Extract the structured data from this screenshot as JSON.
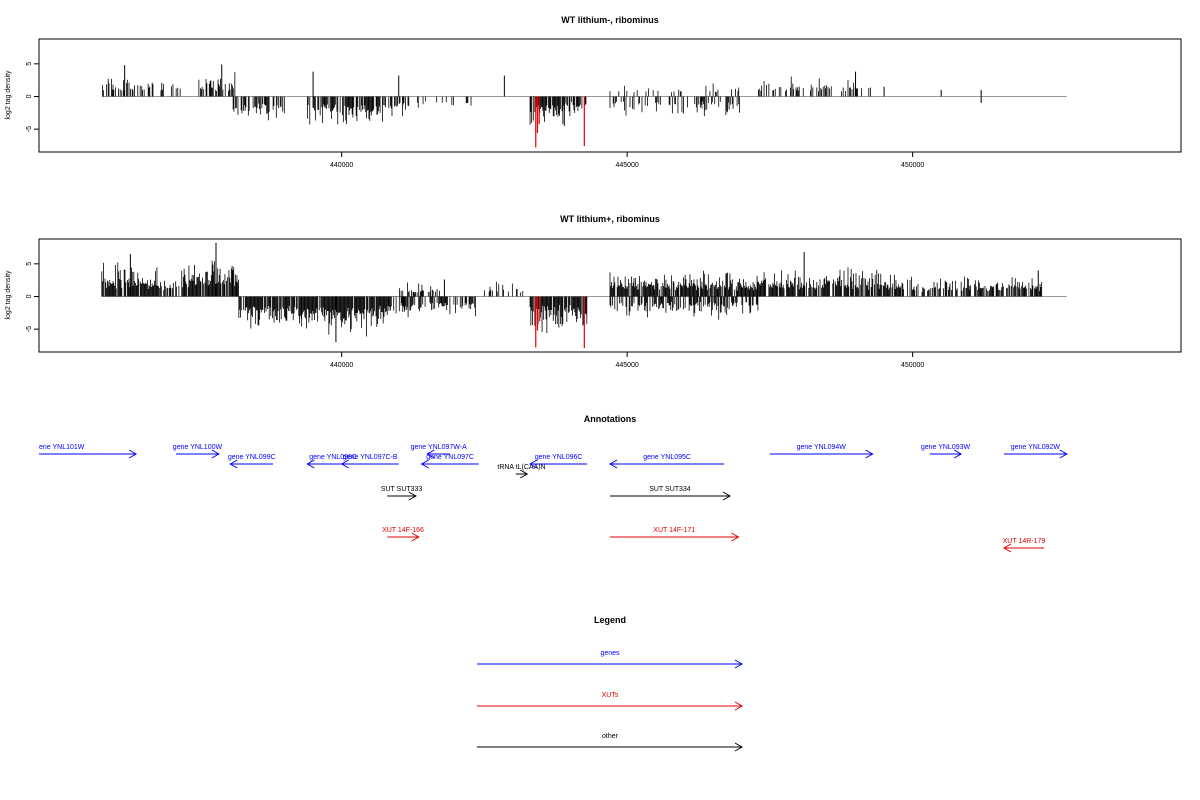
{
  "chart_data": [
    {
      "type": "bar",
      "title": "WT lithium-, ribominus",
      "ylabel": "log2 tag density",
      "xlim": [
        434700,
        454700
      ],
      "ylim": [
        -8.5,
        8.8
      ],
      "x_ticks": [
        440000,
        445000,
        450000
      ],
      "y_ticks": [
        5,
        0,
        -5
      ],
      "baseline": 0,
      "bar_color": "#000000",
      "highlight_color": "#e00000",
      "regions": [
        {
          "from": 435800,
          "to": 437200,
          "amp": 2.8,
          "sign": 1,
          "density": 0.45
        },
        {
          "from": 437500,
          "to": 438150,
          "amp": 3.2,
          "sign": 1,
          "density": 0.45
        },
        {
          "from": 438100,
          "to": 439000,
          "amp": 3.5,
          "sign": -1,
          "density": 0.6
        },
        {
          "from": 439400,
          "to": 440700,
          "amp": 4.2,
          "sign": -1,
          "density": 0.75
        },
        {
          "from": 440700,
          "to": 441200,
          "amp": 3.2,
          "sign": -1,
          "density": 0.5
        },
        {
          "from": 441300,
          "to": 442300,
          "amp": 2.5,
          "sign": -1,
          "density": 0.2
        },
        {
          "from": 443300,
          "to": 443900,
          "amp": 4.5,
          "sign": -1,
          "density": 0.8
        },
        {
          "from": 443900,
          "to": 444300,
          "amp": 3.0,
          "sign": -1,
          "density": 0.5
        },
        {
          "from": 444700,
          "to": 447000,
          "amp": 2.8,
          "sign": -1,
          "density": 0.35
        },
        {
          "from": 444700,
          "to": 447000,
          "amp": 1.8,
          "sign": 1,
          "density": 0.15
        },
        {
          "from": 447300,
          "to": 449300,
          "amp": 2.7,
          "sign": 1,
          "density": 0.4
        }
      ],
      "spikes": [
        {
          "x": 436200,
          "y": 4.8
        },
        {
          "x": 437900,
          "y": 4.9
        },
        {
          "x": 439500,
          "y": 3.8
        },
        {
          "x": 441000,
          "y": 3.2
        },
        {
          "x": 442850,
          "y": 3.2
        },
        {
          "x": 449000,
          "y": 3.8
        },
        {
          "x": 449500,
          "y": 1.5
        },
        {
          "x": 450500,
          "y": 1.0
        },
        {
          "x": 451200,
          "y": 1.0
        },
        {
          "x": 451200,
          "y": -1.0
        },
        {
          "x": 443900,
          "y": -4.5
        }
      ],
      "highlights": [
        {
          "x": 443400,
          "y": -7.8
        },
        {
          "x": 443430,
          "y": -5.6
        },
        {
          "x": 443460,
          "y": -4.2
        },
        {
          "x": 444250,
          "y": -7.6
        }
      ]
    },
    {
      "type": "bar",
      "title": "WT lithium+, ribominus",
      "ylabel": "log2 tag density",
      "xlim": [
        434700,
        454700
      ],
      "ylim": [
        -8.5,
        8.8
      ],
      "x_ticks": [
        440000,
        445000,
        450000
      ],
      "y_ticks": [
        5,
        0,
        -5
      ],
      "baseline": 0,
      "bar_color": "#000000",
      "highlight_color": "#e00000",
      "regions": [
        {
          "from": 435800,
          "to": 436800,
          "amp": 4.5,
          "sign": 1,
          "density": 0.9
        },
        {
          "from": 436800,
          "to": 437200,
          "amp": 3.0,
          "sign": 1,
          "density": 0.6
        },
        {
          "from": 437200,
          "to": 438200,
          "amp": 5.0,
          "sign": 1,
          "density": 0.9
        },
        {
          "from": 438200,
          "to": 439300,
          "amp": 4.5,
          "sign": -1,
          "density": 0.8
        },
        {
          "from": 439300,
          "to": 440800,
          "amp": 5.5,
          "sign": -1,
          "density": 0.95
        },
        {
          "from": 440800,
          "to": 441200,
          "amp": 3.5,
          "sign": -1,
          "density": 0.6
        },
        {
          "from": 441000,
          "to": 441800,
          "amp": 2.0,
          "sign": 1,
          "density": 0.45
        },
        {
          "from": 441000,
          "to": 442400,
          "amp": 3.0,
          "sign": -1,
          "density": 0.6
        },
        {
          "from": 442500,
          "to": 443200,
          "amp": 2.0,
          "sign": 1,
          "density": 0.35
        },
        {
          "from": 443300,
          "to": 444300,
          "amp": 5.0,
          "sign": -1,
          "density": 0.85
        },
        {
          "from": 444700,
          "to": 447300,
          "amp": 3.5,
          "sign": 1,
          "density": 0.9
        },
        {
          "from": 444700,
          "to": 447300,
          "amp": 3.0,
          "sign": -1,
          "density": 0.6
        },
        {
          "from": 447300,
          "to": 449800,
          "amp": 3.8,
          "sign": 1,
          "density": 0.85
        },
        {
          "from": 449800,
          "to": 451000,
          "amp": 2.6,
          "sign": 1,
          "density": 0.6
        },
        {
          "from": 451000,
          "to": 452300,
          "amp": 2.8,
          "sign": 1,
          "density": 0.7
        }
      ],
      "spikes": [
        {
          "x": 436300,
          "y": 6.5
        },
        {
          "x": 437800,
          "y": 8.2
        },
        {
          "x": 439900,
          "y": -7.0
        },
        {
          "x": 448100,
          "y": 6.8
        },
        {
          "x": 452200,
          "y": 4.0
        },
        {
          "x": 441800,
          "y": 2.6
        }
      ],
      "highlights": [
        {
          "x": 443400,
          "y": -7.8
        },
        {
          "x": 443430,
          "y": -5.2
        },
        {
          "x": 443470,
          "y": -3.8
        },
        {
          "x": 444250,
          "y": -7.9
        }
      ]
    }
  ],
  "annotations": {
    "title": "Annotations",
    "tracks": [
      {
        "label": "ene YNL101W",
        "color": "#0000ff",
        "dir": 1,
        "from": 434700,
        "to": 436400,
        "row": 0
      },
      {
        "label": "gene YNL100W",
        "color": "#0000ff",
        "dir": 1,
        "from": 437100,
        "to": 437850,
        "row": 0
      },
      {
        "label": "gene YNL099C",
        "color": "#0000ff",
        "dir": -1,
        "from": 438050,
        "to": 438800,
        "row": 1
      },
      {
        "label": "gene YNL098C",
        "color": "#0000ff",
        "dir": -1,
        "from": 439400,
        "to": 440300,
        "row": 1
      },
      {
        "label": "gene YNL097C-B",
        "color": "#0000ff",
        "dir": -1,
        "from": 440000,
        "to": 441000,
        "row": 1
      },
      {
        "label": "gene YNL097W-A",
        "color": "#0000ff",
        "dir": -1,
        "from": 441500,
        "to": 441900,
        "row": 0
      },
      {
        "label": "gene YNL097C",
        "color": "#0000ff",
        "dir": -1,
        "from": 441400,
        "to": 442400,
        "row": 1
      },
      {
        "label": "tRNA tL(CAA)N",
        "color": "#000000",
        "dir": 1,
        "from": 443050,
        "to": 443250,
        "row": 2
      },
      {
        "label": "gene YNL096C",
        "color": "#0000ff",
        "dir": -1,
        "from": 443300,
        "to": 444300,
        "row": 1
      },
      {
        "label": "gene YNL095C",
        "color": "#0000ff",
        "dir": -1,
        "from": 444700,
        "to": 446700,
        "row": 1
      },
      {
        "label": "gene YNL094W",
        "color": "#0000ff",
        "dir": 1,
        "from": 447500,
        "to": 449300,
        "row": 0
      },
      {
        "label": "gene YNL093W",
        "color": "#0000ff",
        "dir": 1,
        "from": 450300,
        "to": 450850,
        "row": 0
      },
      {
        "label": "gene YNL092W",
        "color": "#0000ff",
        "dir": 1,
        "from": 451600,
        "to": 452700,
        "row": 0
      },
      {
        "label": "SUT SUT333",
        "color": "#000000",
        "dir": 1,
        "from": 440800,
        "to": 441300,
        "row": 3
      },
      {
        "label": "SUT SUT334",
        "color": "#000000",
        "dir": 1,
        "from": 444700,
        "to": 446800,
        "row": 3
      },
      {
        "label": "XUT 14F-166",
        "color": "#e00000",
        "dir": 1,
        "from": 440800,
        "to": 441350,
        "row": 4
      },
      {
        "label": "XUT 14F-171",
        "color": "#e00000",
        "dir": 1,
        "from": 444700,
        "to": 446950,
        "row": 4
      },
      {
        "label": "XUT 14R-179",
        "color": "#e00000",
        "dir": -1,
        "from": 451600,
        "to": 452300,
        "row": 5
      }
    ]
  },
  "legend": {
    "title": "Legend",
    "items": [
      {
        "label": "genes",
        "color": "#0000ff"
      },
      {
        "label": "XUTs",
        "color": "#e00000"
      },
      {
        "label": "other",
        "color": "#000000"
      }
    ]
  }
}
